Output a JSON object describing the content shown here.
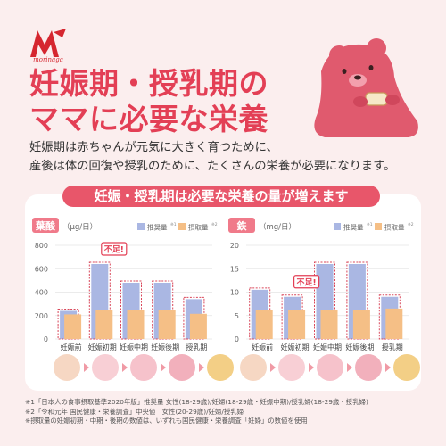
{
  "brand": {
    "name": "morinaga",
    "color": "#d5262f"
  },
  "headline": {
    "line1": "妊娠期・授乳期の",
    "line2": "ママに必要な栄養"
  },
  "subtext": {
    "line1": "妊娠期は赤ちゃんが元気に大きく育つために、",
    "line2": "産後は体の回復や授乳のために、たくさんの栄養が必要になります。"
  },
  "banner": "妊娠・授乳期は必要な栄養の量が増えます",
  "colors": {
    "accent": "#e33f55",
    "banner": "#e8566a",
    "recommended": "#aab7e3",
    "intake": "#f5bf86",
    "dashed": "#d9475a"
  },
  "chart_data": [
    {
      "type": "bar",
      "title": "葉酸",
      "unit": "（μg/日）",
      "categories": [
        "妊娠前",
        "妊娠初期",
        "妊娠中期",
        "妊娠後期",
        "授乳期"
      ],
      "series": [
        {
          "name": "推奨量",
          "note": "※1",
          "values": [
            240,
            640,
            480,
            480,
            340
          ]
        },
        {
          "name": "摂取量",
          "note": "※2",
          "values": [
            210,
            250,
            250,
            250,
            215
          ]
        }
      ],
      "ylim": [
        0,
        800
      ],
      "yticks": [
        "0",
        "200",
        "400",
        "600",
        "800"
      ],
      "callout": {
        "text": "不足!",
        "category": "妊娠初期"
      }
    },
    {
      "type": "bar",
      "title": "鉄",
      "unit": "（mg/日）",
      "categories": [
        "妊娠前",
        "妊娠初期",
        "妊娠中期",
        "妊娠後期",
        "授乳期"
      ],
      "series": [
        {
          "name": "推奨量",
          "note": "※1",
          "values": [
            10.5,
            9,
            16,
            16,
            9
          ]
        },
        {
          "name": "摂取量",
          "note": "※2",
          "values": [
            6.2,
            6.2,
            6.2,
            6.2,
            6.5
          ]
        }
      ],
      "ylim": [
        0,
        20
      ],
      "yticks": [
        "0",
        "5",
        "10",
        "15",
        "20"
      ],
      "callout": {
        "text": "不足!",
        "category": "妊娠初期"
      }
    }
  ],
  "footnotes": [
    "※1「日本人の食事摂取基準2020年版」推奨量 女性(18-29歳)/妊婦(18-29歳・妊娠中期)/授乳婦(18-29歳・授乳婦)",
    "※2「令和元年 国民健康・栄養調査」中央値　女性(20-29歳)/妊婦/授乳婦",
    "※摂取量の妊娠初期・中期・後期の数値は、いずれも国民健康・栄養調査「妊婦」の数値を使用"
  ],
  "avatar_icons": [
    "woman-icon",
    "pregnant-early-icon",
    "pregnant-mid-icon",
    "pregnant-late-icon",
    "mother-baby-icon"
  ]
}
